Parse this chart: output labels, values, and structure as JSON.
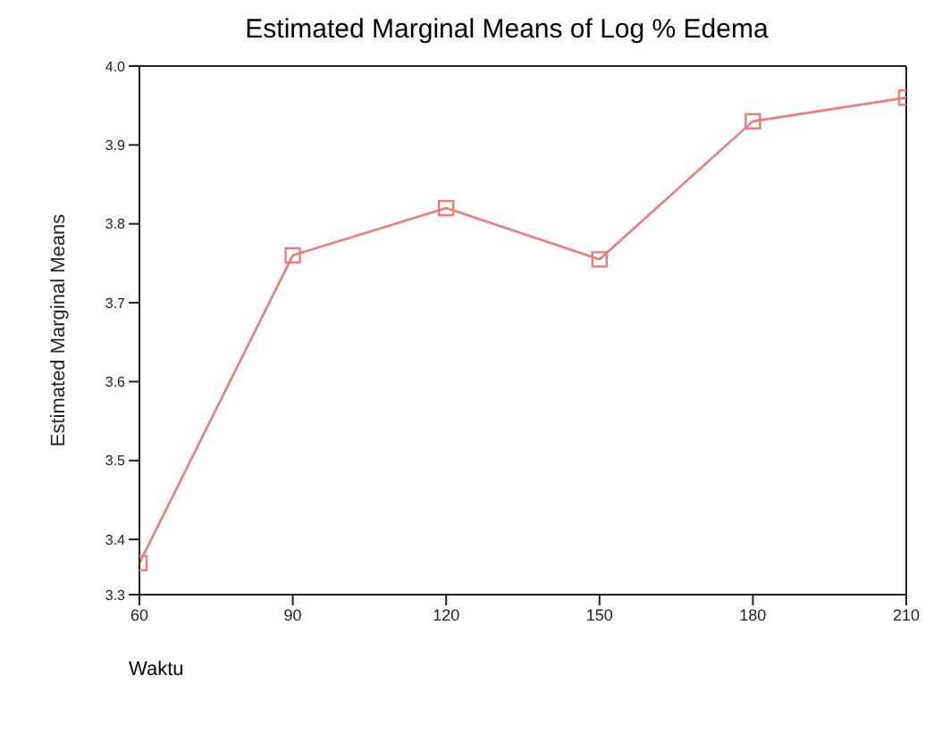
{
  "chart_data": {
    "type": "line",
    "title": "Estimated Marginal Means of Log % Edema",
    "xlabel": "Waktu",
    "ylabel": "Estimated Marginal Means",
    "x": [
      60,
      90,
      120,
      150,
      180,
      210
    ],
    "series": [
      {
        "color": "#f07a7a",
        "values": [
          3.37,
          3.76,
          3.82,
          3.755,
          3.93,
          3.96
        ]
      }
    ],
    "xlim": [
      60,
      210
    ],
    "xticks": [
      60,
      90,
      120,
      150,
      180,
      210
    ],
    "ylim": [
      3.33,
      4.0
    ],
    "yticks": [
      {
        "value": 3.33,
        "label": "3.3"
      },
      3.4,
      3.5,
      3.6,
      3.7,
      3.8,
      3.9,
      {
        "value": 4,
        "label": "4.0"
      }
    ],
    "grid": false,
    "legend": false,
    "marker": "square",
    "line_style": "solid"
  }
}
